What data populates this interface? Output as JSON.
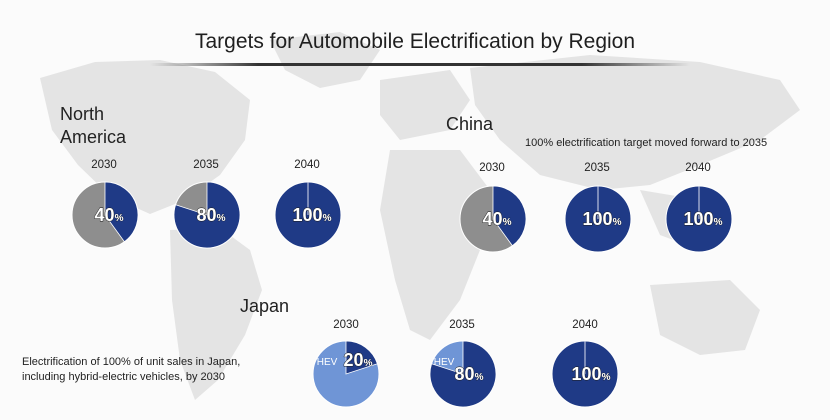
{
  "title": "Targets for Automobile Electrification by Region",
  "regions": {
    "north_america": {
      "name_line1": "North",
      "name_line2": "America"
    },
    "china": {
      "name": "China",
      "note": "100% electrification target moved forward to 2035"
    },
    "japan": {
      "name": "Japan",
      "note_line1": "Electrification of 100% of unit sales in Japan,",
      "note_line2": "including hybrid-electric vehicles, by 2030"
    }
  },
  "colors": {
    "electric": "#1f3a86",
    "other": "#8e8e8e",
    "hev": "#6f95d6"
  },
  "chart_data": [
    {
      "type": "pie",
      "region": "North America",
      "categories": [
        "2030",
        "2035",
        "2040"
      ],
      "values": [
        40,
        80,
        100
      ],
      "unit": "%"
    },
    {
      "type": "pie",
      "region": "China",
      "categories": [
        "2030",
        "2035",
        "2040"
      ],
      "values": [
        40,
        100,
        100
      ],
      "unit": "%"
    },
    {
      "type": "pie",
      "region": "Japan",
      "categories": [
        "2030",
        "2035",
        "2040"
      ],
      "values": [
        20,
        80,
        100
      ],
      "unit": "%",
      "secondary_label": "HEV",
      "secondary_shown_in": [
        "2030",
        "2035"
      ]
    }
  ]
}
